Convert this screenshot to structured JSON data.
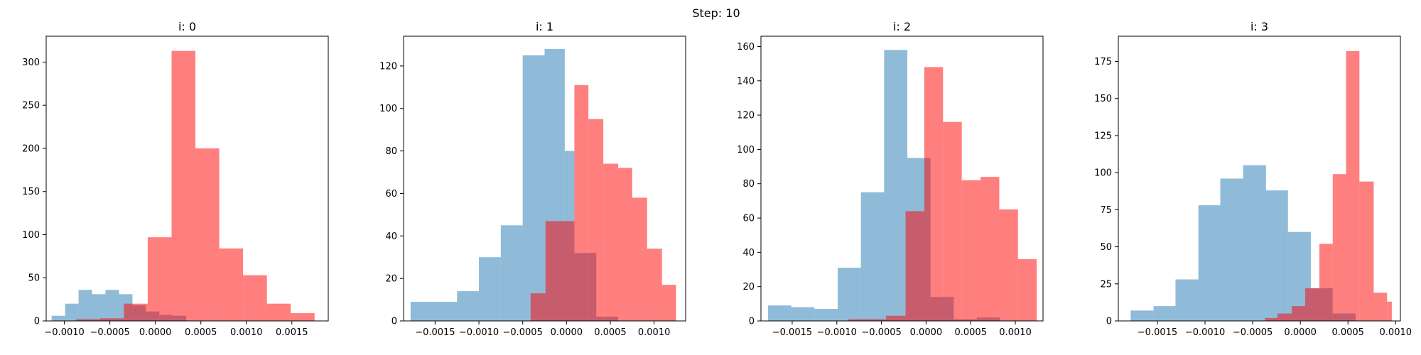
{
  "suptitle": "Step: 10",
  "colors": {
    "blue": "#1f77b4",
    "red": "#ff0000",
    "blue_alpha": 0.5,
    "red_alpha": 0.5
  },
  "chart_data": [
    {
      "type": "histogram",
      "title": "i: 0",
      "xlim": [
        -0.0012,
        0.0019
      ],
      "ylim": [
        0,
        330
      ],
      "xticks": [
        -0.001,
        -0.0005,
        0.0,
        0.0005,
        0.001,
        0.0015
      ],
      "xtick_labels": [
        "−0.0010",
        "−0.0005",
        "0.0000",
        "0.0005",
        "0.0010",
        "0.0015"
      ],
      "yticks": [
        0,
        50,
        100,
        150,
        200,
        250,
        300
      ],
      "ytick_labels": [
        "0",
        "50",
        "100",
        "150",
        "200",
        "250",
        "300"
      ],
      "series": [
        {
          "color": "blue",
          "bins": [
            -0.00114,
            -0.000992,
            -0.000844,
            -0.000696,
            -0.000548,
            -0.0004,
            -0.000252,
            -0.000104,
            4.4e-05,
            0.000192,
            0.00034
          ],
          "counts": [
            6,
            20,
            36,
            31,
            36,
            31,
            18,
            11,
            7,
            6
          ]
        },
        {
          "color": "red",
          "bins": [
            -0.00087,
            -0.000608,
            -0.000346,
            -8.4e-05,
            0.000178,
            0.00044,
            0.000702,
            0.000964,
            0.001226,
            0.001488,
            0.00175
          ],
          "counts": [
            2,
            3,
            20,
            97,
            313,
            200,
            84,
            53,
            20,
            9
          ]
        }
      ]
    },
    {
      "type": "histogram",
      "title": "i: 1",
      "xlim": [
        -0.00186,
        0.00136
      ],
      "ylim": [
        0,
        134
      ],
      "xticks": [
        -0.0015,
        -0.001,
        -0.0005,
        0.0,
        0.0005,
        0.001
      ],
      "xtick_labels": [
        "−0.0015",
        "−0.0010",
        "−0.0005",
        "0.0000",
        "0.0005",
        "0.0010"
      ],
      "yticks": [
        0,
        20,
        40,
        60,
        80,
        100,
        120
      ],
      "ytick_labels": [
        "0",
        "20",
        "40",
        "60",
        "80",
        "100",
        "120"
      ],
      "series": [
        {
          "color": "blue",
          "bins": [
            -0.00178,
            -0.0015,
            -0.00125,
            -0.001,
            -0.00075,
            -0.0005,
            -0.00025,
            -2e-05,
            9e-05,
            0.00034,
            0.00059
          ],
          "counts": [
            9,
            9,
            14,
            30,
            45,
            125,
            128,
            80,
            32,
            2
          ]
        },
        {
          "color": "red",
          "bins": [
            -0.00041,
            -0.00024,
            9e-05,
            0.00025,
            0.00042,
            0.00059,
            0.00075,
            0.00092,
            0.00109,
            0.00125
          ],
          "counts": [
            13,
            47,
            111,
            95,
            74,
            72,
            58,
            34,
            17
          ]
        }
      ]
    },
    {
      "type": "histogram",
      "title": "i: 2",
      "xlim": [
        -0.00185,
        0.00131
      ],
      "ylim": [
        0,
        166
      ],
      "xticks": [
        -0.0015,
        -0.001,
        -0.0005,
        0.0,
        0.0005,
        0.001
      ],
      "xtick_labels": [
        "−0.0015",
        "−0.0010",
        "−0.0005",
        "0.0000",
        "0.0005",
        "0.0010"
      ],
      "yticks": [
        0,
        20,
        40,
        60,
        80,
        100,
        120,
        140,
        160
      ],
      "ytick_labels": [
        "0",
        "20",
        "40",
        "60",
        "80",
        "100",
        "120",
        "140",
        "160"
      ],
      "series": [
        {
          "color": "blue",
          "bins": [
            -0.00177,
            -0.00151,
            -0.00125,
            -0.00099,
            -0.00073,
            -0.00047,
            -0.00021,
            5e-05,
            0.00031,
            0.00057,
            0.00083
          ],
          "counts": [
            9,
            8,
            7,
            31,
            75,
            158,
            95,
            14,
            1,
            2
          ]
        },
        {
          "color": "red",
          "bins": [
            -0.00087,
            -0.00066,
            -0.00045,
            -0.00023,
            -2e-05,
            0.00019,
            0.0004,
            0.00061,
            0.00082,
            0.00103,
            0.00124
          ],
          "counts": [
            1,
            1,
            3,
            64,
            148,
            116,
            82,
            84,
            65,
            36
          ]
        }
      ]
    },
    {
      "type": "histogram",
      "title": "i: 3",
      "xlim": [
        -0.00191,
        0.00105
      ],
      "ylim": [
        0,
        192
      ],
      "xticks": [
        -0.0015,
        -0.001,
        -0.0005,
        0.0,
        0.0005,
        0.001
      ],
      "xtick_labels": [
        "−0.0015",
        "−0.0010",
        "−0.0005",
        "0.0000",
        "0.0005",
        "0.0010"
      ],
      "yticks": [
        0,
        25,
        50,
        75,
        100,
        125,
        150,
        175
      ],
      "ytick_labels": [
        "0",
        "25",
        "50",
        "75",
        "100",
        "125",
        "150",
        "175"
      ],
      "series": [
        {
          "color": "blue",
          "bins": [
            -0.00178,
            -0.00154,
            -0.00131,
            -0.00107,
            -0.00084,
            -0.0006,
            -0.00036,
            -0.00013,
            0.00011,
            0.00034,
            0.00058
          ],
          "counts": [
            7,
            10,
            28,
            78,
            96,
            105,
            88,
            60,
            22,
            5
          ]
        },
        {
          "color": "red",
          "bins": [
            -0.00037,
            -0.00024,
            -9e-05,
            5e-05,
            0.0002,
            0.00034,
            0.00048,
            0.00062,
            0.00077,
            0.00091,
            0.00096
          ],
          "counts": [
            2,
            5,
            10,
            22,
            52,
            99,
            182,
            94,
            19,
            13
          ]
        }
      ]
    }
  ]
}
